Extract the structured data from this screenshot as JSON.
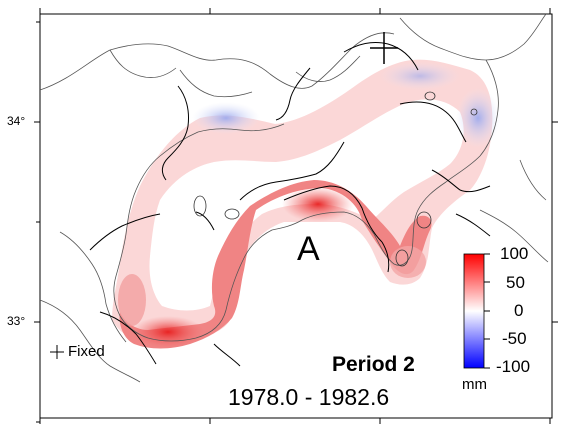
{
  "axes": {
    "lat_labels": [
      "34°",
      "33°"
    ]
  },
  "annotations": {
    "region_label": "A",
    "fixed_label": "Fixed",
    "period_label": "Period 2",
    "date_range": "1978.0 - 1982.6"
  },
  "colorbar": {
    "ticks": [
      "100",
      "50",
      "0",
      "-50",
      "-100"
    ],
    "unit": "mm",
    "range": [
      -100,
      100
    ],
    "colors": {
      "max": "#ff0000",
      "mid": "#ffffff",
      "min": "#0000ff"
    }
  },
  "colors": {
    "uplift": "#f06a6a",
    "subsidence": "#aab4f0",
    "coastline": "#555555",
    "contour": "#000000"
  }
}
